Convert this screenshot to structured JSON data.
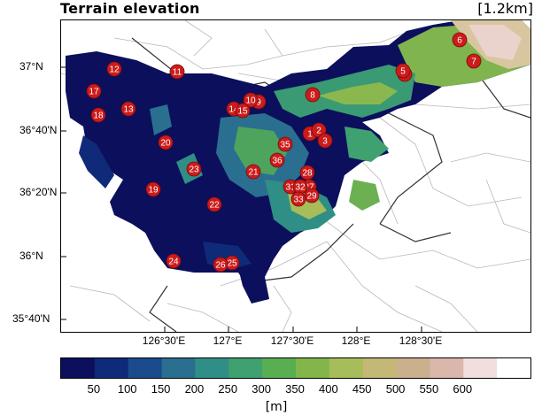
{
  "title": "Terrain elevation",
  "resolution": "[1.2km]",
  "lat_labels": [
    "37°N",
    "36°40'N",
    "36°20'N",
    "36°N",
    "35°40'N"
  ],
  "lon_labels": [
    "126°30'E",
    "127°E",
    "127°30'E",
    "128°E",
    "128°30'E"
  ],
  "colorbar": {
    "labels": [
      "50",
      "100",
      "150",
      "200",
      "250",
      "300",
      "350",
      "400",
      "450",
      "500",
      "550",
      "600"
    ],
    "unit": "[m]",
    "colors": [
      "#0b0f5c",
      "#0f2a78",
      "#1b4b8c",
      "#2a6f8f",
      "#2f8f86",
      "#3fa070",
      "#5aae52",
      "#82b64a",
      "#a7bd5a",
      "#c3b875",
      "#cbb08e",
      "#dbb6ab",
      "#f2dede",
      "#ffffff"
    ]
  },
  "stations": [
    {
      "id": "1"
    },
    {
      "id": "2"
    },
    {
      "id": "3"
    },
    {
      "id": "4"
    },
    {
      "id": "5"
    },
    {
      "id": "6"
    },
    {
      "id": "7"
    },
    {
      "id": "8"
    },
    {
      "id": "9"
    },
    {
      "id": "10"
    },
    {
      "id": "11"
    },
    {
      "id": "12"
    },
    {
      "id": "13"
    },
    {
      "id": "14"
    },
    {
      "id": "15"
    },
    {
      "id": "17"
    },
    {
      "id": "18"
    },
    {
      "id": "19"
    },
    {
      "id": "20"
    },
    {
      "id": "21"
    },
    {
      "id": "22"
    },
    {
      "id": "23"
    },
    {
      "id": "24"
    },
    {
      "id": "25"
    },
    {
      "id": "26"
    },
    {
      "id": "27"
    },
    {
      "id": "28"
    },
    {
      "id": "29"
    },
    {
      "id": "31"
    },
    {
      "id": "32"
    },
    {
      "id": "33"
    },
    {
      "id": "35"
    },
    {
      "id": "36"
    }
  ]
}
